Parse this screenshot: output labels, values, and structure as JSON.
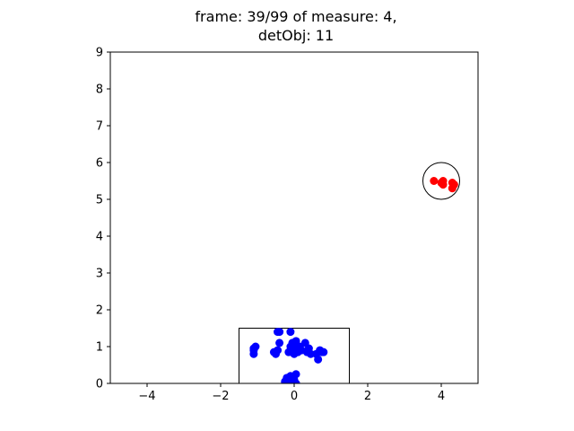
{
  "chart_data": {
    "type": "scatter",
    "title_lines": [
      "frame: 39/99 of measure: 4,",
      "detObj: 11"
    ],
    "xlabel": "",
    "ylabel": "",
    "xlim": [
      -5,
      5
    ],
    "ylim": [
      0,
      9
    ],
    "xticks": [
      -4,
      -2,
      0,
      2,
      4
    ],
    "xtick_labels": [
      "−4",
      "−2",
      "0",
      "2",
      "4"
    ],
    "yticks": [
      0,
      1,
      2,
      3,
      4,
      5,
      6,
      7,
      8,
      9
    ],
    "ytick_labels": [
      "0",
      "1",
      "2",
      "3",
      "4",
      "5",
      "6",
      "7",
      "8",
      "9"
    ],
    "grid": false,
    "series": [
      {
        "color": "#0000ff",
        "points": [
          [
            -1.1,
            0.8
          ],
          [
            -1.1,
            0.9
          ],
          [
            -1.1,
            0.95
          ],
          [
            -1.05,
            1.0
          ],
          [
            -0.45,
            1.4
          ],
          [
            -0.4,
            1.4
          ],
          [
            -0.1,
            1.4
          ],
          [
            -0.55,
            0.85
          ],
          [
            -0.5,
            0.8
          ],
          [
            -0.45,
            0.9
          ],
          [
            -0.4,
            1.1
          ],
          [
            -0.15,
            0.85
          ],
          [
            -0.1,
            1.0
          ],
          [
            -0.05,
            0.9
          ],
          [
            -0.05,
            1.1
          ],
          [
            0.0,
            0.8
          ],
          [
            0.05,
            0.95
          ],
          [
            0.05,
            1.15
          ],
          [
            0.1,
            0.85
          ],
          [
            0.15,
            1.0
          ],
          [
            0.2,
            0.9
          ],
          [
            0.3,
            1.1
          ],
          [
            0.35,
            0.85
          ],
          [
            0.4,
            0.95
          ],
          [
            0.45,
            0.8
          ],
          [
            0.6,
            0.8
          ],
          [
            0.65,
            0.65
          ],
          [
            0.7,
            0.9
          ],
          [
            0.75,
            0.85
          ],
          [
            0.8,
            0.85
          ],
          [
            -0.25,
            0.05
          ],
          [
            -0.2,
            0.15
          ],
          [
            -0.15,
            0.1
          ],
          [
            -0.1,
            0.2
          ],
          [
            -0.05,
            0.05
          ],
          [
            0.0,
            0.1
          ],
          [
            0.05,
            0.25
          ],
          [
            0.05,
            0.0
          ]
        ]
      },
      {
        "color": "#ff0000",
        "points": [
          [
            3.8,
            5.5
          ],
          [
            4.0,
            5.45
          ],
          [
            4.05,
            5.4
          ],
          [
            4.05,
            5.5
          ],
          [
            4.3,
            5.3
          ],
          [
            4.35,
            5.4
          ],
          [
            4.3,
            5.45
          ]
        ]
      }
    ],
    "shapes": [
      {
        "type": "rectangle",
        "x": [
          -1.5,
          1.5
        ],
        "y": [
          0,
          1.5
        ],
        "color": "#000000"
      },
      {
        "type": "circle",
        "center": [
          4.0,
          5.5
        ],
        "radius": 0.5,
        "color": "#000000"
      }
    ]
  }
}
